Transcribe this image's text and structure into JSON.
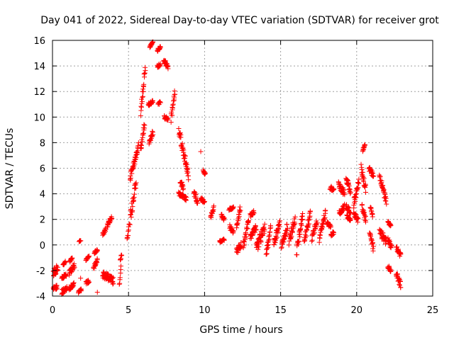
{
  "chart_data": {
    "type": "scatter",
    "title": "Day 041 of 2022, Sidereal Day-to-day VTEC variation (SDTVAR) for receiver grot",
    "xlabel": "GPS time / hours",
    "ylabel": "SDTVAR / TECUs",
    "xlim": [
      0,
      25
    ],
    "ylim": [
      -4,
      16
    ],
    "xticks": [
      0,
      5,
      10,
      15,
      20,
      25
    ],
    "yticks": [
      -4,
      -2,
      0,
      2,
      4,
      6,
      8,
      10,
      12,
      14,
      16
    ],
    "grid": true,
    "marker": "+",
    "color": "#ff0000",
    "series": [
      {
        "name": "SDTVAR",
        "segments": [
          {
            "x0": 0.05,
            "x1": 0.35,
            "y0": -2.2,
            "y1": -1.8,
            "noise": 0.6
          },
          {
            "x0": 0.05,
            "x1": 0.3,
            "y0": -3.4,
            "y1": -3.3,
            "noise": 0.3
          },
          {
            "x0": 0.6,
            "x1": 0.95,
            "y0": -3.7,
            "y1": -3.4,
            "noise": 0.4
          },
          {
            "x0": 0.6,
            "x1": 0.9,
            "y0": -2.6,
            "y1": -2.3,
            "noise": 0.3
          },
          {
            "x0": 0.7,
            "x1": 0.85,
            "y0": -1.6,
            "y1": -1.3,
            "noise": 0.2
          },
          {
            "x0": 1.1,
            "x1": 1.4,
            "y0": -3.4,
            "y1": -3.1,
            "noise": 0.3
          },
          {
            "x0": 1.1,
            "x1": 1.45,
            "y0": -2.2,
            "y1": -1.6,
            "noise": 0.4
          },
          {
            "x0": 1.15,
            "x1": 1.3,
            "y0": -1.3,
            "y1": -1.0,
            "noise": 0.2
          },
          {
            "x0": 1.7,
            "x1": 1.9,
            "y0": -3.7,
            "y1": -3.5,
            "noise": 0.2
          },
          {
            "x0": 1.75,
            "x1": 1.85,
            "y0": 0.3,
            "y1": 0.3,
            "noise": 0.1
          },
          {
            "x0": 2.2,
            "x1": 2.4,
            "y0": -3.0,
            "y1": -2.8,
            "noise": 0.3
          },
          {
            "x0": 2.2,
            "x1": 2.4,
            "y0": -1.2,
            "y1": -0.9,
            "noise": 0.2
          },
          {
            "x0": 2.7,
            "x1": 2.95,
            "y0": -1.8,
            "y1": -1.2,
            "noise": 0.3
          },
          {
            "x0": 2.75,
            "x1": 2.95,
            "y0": -0.6,
            "y1": -0.4,
            "noise": 0.2
          },
          {
            "x0": 3.3,
            "x1": 4.0,
            "y0": -2.3,
            "y1": -2.8,
            "noise": 0.6
          },
          {
            "x0": 3.3,
            "x1": 3.5,
            "y0": 0.8,
            "y1": 1.2,
            "noise": 0.3
          },
          {
            "x0": 3.6,
            "x1": 3.9,
            "y0": 1.5,
            "y1": 2.2,
            "noise": 0.3
          },
          {
            "x0": 4.4,
            "x1": 4.5,
            "y0": -3.2,
            "y1": -1.5,
            "noise": 0.5
          },
          {
            "x0": 4.45,
            "x1": 4.55,
            "y0": -1.2,
            "y1": -0.8,
            "noise": 0.2
          },
          {
            "x0": 4.9,
            "x1": 5.05,
            "y0": 0.4,
            "y1": 1.6,
            "noise": 0.5
          },
          {
            "x0": 5.1,
            "x1": 5.5,
            "y0": 2.0,
            "y1": 5.0,
            "noise": 1.0
          },
          {
            "x0": 5.1,
            "x1": 5.4,
            "y0": 5.2,
            "y1": 6.5,
            "noise": 0.6
          },
          {
            "x0": 5.4,
            "x1": 5.65,
            "y0": 6.5,
            "y1": 7.8,
            "noise": 0.5
          },
          {
            "x0": 5.8,
            "x1": 6.05,
            "y0": 7.5,
            "y1": 9.4,
            "noise": 0.5
          },
          {
            "x0": 5.8,
            "x1": 6.1,
            "y0": 10.5,
            "y1": 13.8,
            "noise": 0.8
          },
          {
            "x0": 6.3,
            "x1": 6.6,
            "y0": 11.0,
            "y1": 11.2,
            "noise": 0.3
          },
          {
            "x0": 6.35,
            "x1": 6.6,
            "y0": 8.0,
            "y1": 8.8,
            "noise": 0.4
          },
          {
            "x0": 6.4,
            "x1": 6.6,
            "y0": 15.5,
            "y1": 15.9,
            "noise": 0.2
          },
          {
            "x0": 6.9,
            "x1": 7.1,
            "y0": 15.2,
            "y1": 15.5,
            "noise": 0.2
          },
          {
            "x0": 6.9,
            "x1": 7.1,
            "y0": 13.9,
            "y1": 14.2,
            "noise": 0.3
          },
          {
            "x0": 6.95,
            "x1": 7.1,
            "y0": 11.0,
            "y1": 11.2,
            "noise": 0.2
          },
          {
            "x0": 7.3,
            "x1": 7.6,
            "y0": 14.5,
            "y1": 13.9,
            "noise": 0.4
          },
          {
            "x0": 7.35,
            "x1": 7.6,
            "y0": 10.0,
            "y1": 9.8,
            "noise": 0.3
          },
          {
            "x0": 7.8,
            "x1": 8.05,
            "y0": 9.8,
            "y1": 12.0,
            "noise": 0.7
          },
          {
            "x0": 8.3,
            "x1": 8.95,
            "y0": 9.0,
            "y1": 5.4,
            "noise": 0.8
          },
          {
            "x0": 8.3,
            "x1": 8.8,
            "y0": 4.0,
            "y1": 3.6,
            "noise": 0.3
          },
          {
            "x0": 8.4,
            "x1": 8.6,
            "y0": 5.0,
            "y1": 4.4,
            "noise": 0.4
          },
          {
            "x0": 9.3,
            "x1": 9.55,
            "y0": 4.0,
            "y1": 3.4,
            "noise": 0.5
          },
          {
            "x0": 9.75,
            "x1": 10.0,
            "y0": 3.6,
            "y1": 3.4,
            "noise": 0.3
          },
          {
            "x0": 9.9,
            "x1": 10.05,
            "y0": 5.8,
            "y1": 5.5,
            "noise": 0.2
          },
          {
            "x0": 10.4,
            "x1": 10.6,
            "y0": 2.2,
            "y1": 2.9,
            "noise": 0.4
          },
          {
            "x0": 11.0,
            "x1": 11.3,
            "y0": 0.3,
            "y1": 0.4,
            "noise": 0.2
          },
          {
            "x0": 11.1,
            "x1": 11.3,
            "y0": 2.3,
            "y1": 2.0,
            "noise": 0.3
          },
          {
            "x0": 11.6,
            "x1": 11.9,
            "y0": 2.8,
            "y1": 2.9,
            "noise": 0.2
          },
          {
            "x0": 11.65,
            "x1": 11.9,
            "y0": 1.4,
            "y1": 0.9,
            "noise": 0.5
          },
          {
            "x0": 12.1,
            "x1": 12.4,
            "y0": -0.5,
            "y1": 0.0,
            "noise": 0.5
          },
          {
            "x0": 12.1,
            "x1": 12.35,
            "y0": 1.3,
            "y1": 2.9,
            "noise": 0.5
          },
          {
            "x0": 12.55,
            "x1": 12.9,
            "y0": 0.0,
            "y1": 1.8,
            "noise": 0.6
          },
          {
            "x0": 13.0,
            "x1": 13.25,
            "y0": 2.3,
            "y1": 2.6,
            "noise": 0.3
          },
          {
            "x0": 13.0,
            "x1": 13.4,
            "y0": 0.6,
            "y1": 1.4,
            "noise": 0.5
          },
          {
            "x0": 13.4,
            "x1": 13.95,
            "y0": -0.3,
            "y1": 1.4,
            "noise": 0.8
          },
          {
            "x0": 14.05,
            "x1": 14.35,
            "y0": -0.8,
            "y1": 1.3,
            "noise": 0.7
          },
          {
            "x0": 14.55,
            "x1": 14.95,
            "y0": 0.0,
            "y1": 1.8,
            "noise": 0.7
          },
          {
            "x0": 15.05,
            "x1": 15.45,
            "y0": -0.2,
            "y1": 1.5,
            "noise": 0.6
          },
          {
            "x0": 15.55,
            "x1": 15.95,
            "y0": 0.3,
            "y1": 2.0,
            "noise": 0.7
          },
          {
            "x0": 16.05,
            "x1": 16.45,
            "y0": -0.5,
            "y1": 2.3,
            "noise": 0.8
          },
          {
            "x0": 16.55,
            "x1": 16.95,
            "y0": 0.2,
            "y1": 2.5,
            "noise": 0.8
          },
          {
            "x0": 17.05,
            "x1": 17.4,
            "y0": 0.5,
            "y1": 2.0,
            "noise": 0.6
          },
          {
            "x0": 17.55,
            "x1": 17.95,
            "y0": 0.5,
            "y1": 2.6,
            "noise": 0.7
          },
          {
            "x0": 18.05,
            "x1": 18.3,
            "y0": 1.7,
            "y1": 1.5,
            "noise": 0.3
          },
          {
            "x0": 18.25,
            "x1": 18.5,
            "y0": 4.5,
            "y1": 4.3,
            "noise": 0.3
          },
          {
            "x0": 18.3,
            "x1": 18.5,
            "y0": 0.7,
            "y1": 1.0,
            "noise": 0.3
          },
          {
            "x0": 18.8,
            "x1": 19.2,
            "y0": 4.8,
            "y1": 4.0,
            "noise": 0.5
          },
          {
            "x0": 18.85,
            "x1": 19.2,
            "y0": 2.5,
            "y1": 3.0,
            "noise": 0.4
          },
          {
            "x0": 19.3,
            "x1": 19.6,
            "y0": 5.2,
            "y1": 4.2,
            "noise": 0.5
          },
          {
            "x0": 19.3,
            "x1": 19.6,
            "y0": 3.0,
            "y1": 2.6,
            "noise": 0.4
          },
          {
            "x0": 19.35,
            "x1": 19.6,
            "y0": 2.2,
            "y1": 2.0,
            "noise": 0.3
          },
          {
            "x0": 19.8,
            "x1": 20.15,
            "y0": 3.2,
            "y1": 5.0,
            "noise": 0.7
          },
          {
            "x0": 19.8,
            "x1": 20.1,
            "y0": 2.5,
            "y1": 1.9,
            "noise": 0.4
          },
          {
            "x0": 20.4,
            "x1": 20.55,
            "y0": 7.4,
            "y1": 7.8,
            "noise": 0.2
          },
          {
            "x0": 20.3,
            "x1": 20.6,
            "y0": 6.0,
            "y1": 4.3,
            "noise": 0.6
          },
          {
            "x0": 20.35,
            "x1": 20.6,
            "y0": 3.0,
            "y1": 2.0,
            "noise": 0.5
          },
          {
            "x0": 20.8,
            "x1": 21.1,
            "y0": 6.0,
            "y1": 5.4,
            "noise": 0.4
          },
          {
            "x0": 20.85,
            "x1": 21.1,
            "y0": 1.0,
            "y1": -0.3,
            "noise": 0.5
          },
          {
            "x0": 20.9,
            "x1": 21.05,
            "y0": 3.0,
            "y1": 2.3,
            "noise": 0.3
          },
          {
            "x0": 21.5,
            "x1": 21.95,
            "y0": 5.5,
            "y1": 3.3,
            "noise": 0.6
          },
          {
            "x0": 21.5,
            "x1": 21.95,
            "y0": 1.0,
            "y1": 0.3,
            "noise": 0.6
          },
          {
            "x0": 22.05,
            "x1": 22.25,
            "y0": 1.8,
            "y1": 1.5,
            "noise": 0.3
          },
          {
            "x0": 22.05,
            "x1": 22.3,
            "y0": 0.4,
            "y1": -0.2,
            "noise": 0.4
          },
          {
            "x0": 22.05,
            "x1": 22.25,
            "y0": -1.7,
            "y1": -2.0,
            "noise": 0.3
          },
          {
            "x0": 22.6,
            "x1": 22.9,
            "y0": -0.2,
            "y1": -0.8,
            "noise": 0.4
          },
          {
            "x0": 22.6,
            "x1": 22.9,
            "y0": -2.2,
            "y1": -3.2,
            "noise": 0.5
          }
        ],
        "points": [
          [
            9.75,
            7.3
          ],
          [
            1.85,
            -2.6
          ],
          [
            2.95,
            -3.7
          ]
        ]
      }
    ]
  }
}
